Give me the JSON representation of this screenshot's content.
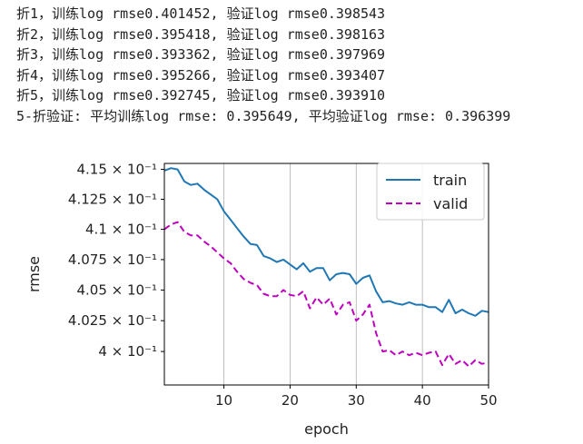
{
  "log_lines": [
    "折1，训练log rmse0.401452, 验证log rmse0.398543",
    "折2，训练log rmse0.395418, 验证log rmse0.398163",
    "折3，训练log rmse0.393362, 验证log rmse0.397969",
    "折4，训练log rmse0.395266, 验证log rmse0.393407",
    "折5，训练log rmse0.392745, 验证log rmse0.393910",
    "5-折验证: 平均训练log rmse: 0.395649, 平均验证log rmse: 0.396399"
  ],
  "chart_data": {
    "type": "line",
    "xlabel": "epoch",
    "ylabel": "rmse",
    "xlim": [
      1,
      50
    ],
    "ylim": [
      0.3973,
      0.4155
    ],
    "yscale": "log",
    "grid": "vertical",
    "legend_position": "top-right",
    "x_ticks": [
      10,
      20,
      30,
      40,
      50
    ],
    "y_ticks": [
      {
        "value": 0.4,
        "label": "4 × 10⁻¹"
      },
      {
        "value": 0.4025,
        "label": "4.025 × 10⁻¹"
      },
      {
        "value": 0.405,
        "label": "4.05 × 10⁻¹"
      },
      {
        "value": 0.4075,
        "label": "4.075 × 10⁻¹"
      },
      {
        "value": 0.41,
        "label": "4.1 × 10⁻¹"
      },
      {
        "value": 0.4125,
        "label": "4.125 × 10⁻¹"
      },
      {
        "value": 0.415,
        "label": "4.15 × 10⁻¹"
      }
    ],
    "x": [
      1,
      2,
      3,
      4,
      5,
      6,
      7,
      8,
      9,
      10,
      11,
      12,
      13,
      14,
      15,
      16,
      17,
      18,
      19,
      20,
      21,
      22,
      23,
      24,
      25,
      26,
      27,
      28,
      29,
      30,
      31,
      32,
      33,
      34,
      35,
      36,
      37,
      38,
      39,
      40,
      41,
      42,
      43,
      44,
      45,
      46,
      47,
      48,
      49,
      50
    ],
    "series": [
      {
        "name": "train",
        "color": "#1f77b4",
        "dash": "solid",
        "values": [
          0.4149,
          0.4151,
          0.415,
          0.414,
          0.4137,
          0.4138,
          0.4133,
          0.4129,
          0.4125,
          0.4115,
          0.4108,
          0.4101,
          0.4094,
          0.4088,
          0.4087,
          0.4078,
          0.4076,
          0.4073,
          0.4075,
          0.4071,
          0.4067,
          0.4072,
          0.4065,
          0.4068,
          0.4068,
          0.4058,
          0.4063,
          0.4064,
          0.4063,
          0.4055,
          0.406,
          0.4062,
          0.4049,
          0.404,
          0.4041,
          0.4039,
          0.4038,
          0.404,
          0.4038,
          0.4038,
          0.4036,
          0.4036,
          0.4032,
          0.4042,
          0.4031,
          0.4034,
          0.4031,
          0.4029,
          0.4033,
          0.4032
        ]
      },
      {
        "name": "valid",
        "color": "#bf00bf",
        "dash": "dashed",
        "values": [
          0.41,
          0.4104,
          0.4106,
          0.4098,
          0.4095,
          0.4095,
          0.409,
          0.4086,
          0.4081,
          0.4076,
          0.4072,
          0.4065,
          0.4059,
          0.4056,
          0.4054,
          0.4047,
          0.4045,
          0.4045,
          0.405,
          0.4046,
          0.4045,
          0.4049,
          0.4035,
          0.4044,
          0.4038,
          0.4043,
          0.403,
          0.4038,
          0.404,
          0.4025,
          0.403,
          0.4038,
          0.4015,
          0.4,
          0.4001,
          0.3997,
          0.4,
          0.3997,
          0.3999,
          0.3997,
          0.3999,
          0.4,
          0.3989,
          0.3998,
          0.399,
          0.3993,
          0.3988,
          0.3993,
          0.399,
          0.3991
        ]
      }
    ]
  }
}
